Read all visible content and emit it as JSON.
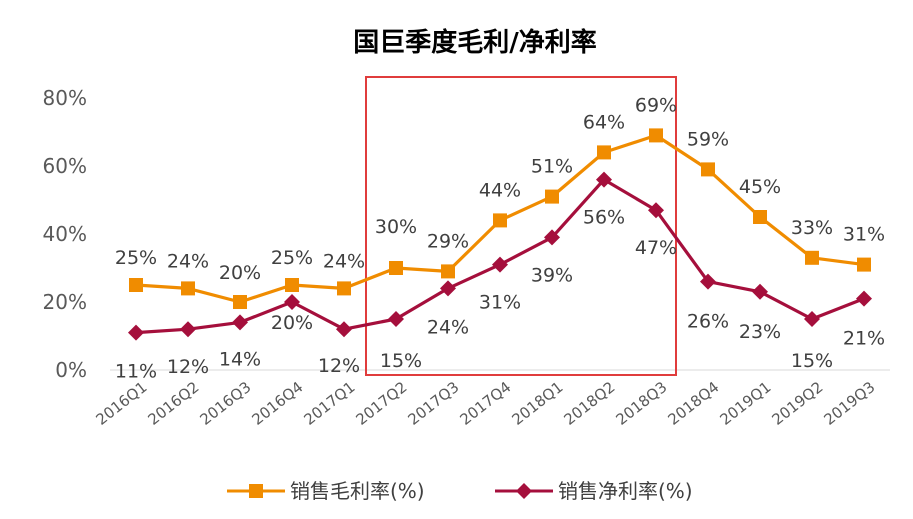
{
  "chart_data": {
    "type": "line",
    "title": "国巨季度毛利/净利率",
    "xlabel": "",
    "ylabel": "",
    "categories": [
      "2016Q1",
      "2016Q2",
      "2016Q3",
      "2016Q4",
      "2017Q1",
      "2017Q2",
      "2017Q3",
      "2017Q4",
      "2018Q1",
      "2018Q2",
      "2018Q3",
      "2018Q4",
      "2019Q1",
      "2019Q2",
      "2019Q3"
    ],
    "ylim": [
      0,
      80
    ],
    "yticks": [
      "0%",
      "20%",
      "40%",
      "60%",
      "80%"
    ],
    "grid": false,
    "legend_position": "bottom",
    "highlight_range": [
      "2017Q2",
      "2018Q3"
    ],
    "series": [
      {
        "name": "销售毛利率(%)",
        "color": "#F08C00",
        "marker": "square",
        "values": [
          25,
          24,
          20,
          25,
          24,
          30,
          29,
          44,
          51,
          64,
          69,
          59,
          45,
          33,
          31
        ],
        "labels": [
          "25%",
          "24%",
          "20%",
          "25%",
          "24%",
          "30%",
          "29%",
          "44%",
          "51%",
          "64%",
          "69%",
          "59%",
          "45%",
          "33%",
          "31%"
        ]
      },
      {
        "name": "销售净利率(%)",
        "color": "#A50F3C",
        "marker": "diamond",
        "values": [
          11,
          12,
          14,
          20,
          12,
          15,
          24,
          31,
          39,
          56,
          47,
          26,
          23,
          15,
          21
        ],
        "labels": [
          "11%",
          "12%",
          "14%",
          "20%",
          "12%",
          "15%",
          "24%",
          "31%",
          "39%",
          "56%",
          "47%",
          "26%",
          "23%",
          "15%",
          "21%"
        ]
      }
    ],
    "highlight_color": "#E03C3C"
  }
}
